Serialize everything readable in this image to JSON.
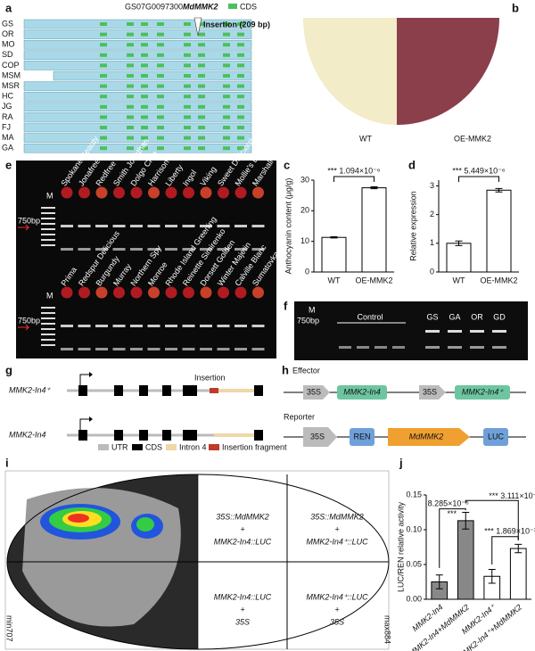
{
  "panel_a": {
    "label": "a",
    "gene_id": "GS07G0097300",
    "gene": "MdMMK2",
    "legend": "CDS",
    "insertion": "Insertion (209 bp)",
    "rows": [
      "GS",
      "OR",
      "MO",
      "SD",
      "COP",
      "MSM",
      "MSR",
      "HC",
      "JG",
      "RA",
      "FJ",
      "MA",
      "GA"
    ]
  },
  "panel_b": {
    "label": "b",
    "left": "WT",
    "right": "OE-MMK2"
  },
  "panel_e": {
    "label": "e",
    "marker": "M",
    "size": "750bp",
    "top_lanes": [
      "Spokane Beauty",
      "Jonafree",
      "Redfree",
      "Smith Jonathan",
      "Dolgo Crab",
      "Harrison",
      "Liberty",
      "Ingol",
      "Viking",
      "Sweet Delicious",
      "Mollie's Delicious",
      "Marshall McIntosh"
    ],
    "bottom_lanes": [
      "Prima",
      "Redspur Delicious",
      "Burgundy",
      "Murray",
      "Northern Spy",
      "Monroe",
      "Rhode Island Greening",
      "Reinette Simirenko",
      "Dorsett Golden",
      "Winter Majetin",
      "Calville Blanc",
      "Sumatovka"
    ]
  },
  "panel_f": {
    "label": "f",
    "marker": "M",
    "size": "750bp",
    "control": "Control",
    "lanes": [
      "GS",
      "GA",
      "OR",
      "GD"
    ]
  },
  "panel_g": {
    "label": "g",
    "construct_1": "MMK2-In4⁺",
    "insertion": "Insertion",
    "construct_2": "MMK2-In4",
    "legend": [
      "UTR",
      "CDS",
      "Intron 4",
      "Insertion fragment"
    ]
  },
  "panel_h": {
    "label": "h",
    "effector": "Effector",
    "promoter": "35S",
    "effector_1": "MMK2-In4",
    "effector_2": "MMK2-In4⁺",
    "reporter": "Reporter",
    "ren": "REN",
    "gene": "MdMMK2",
    "luc": "LUC"
  },
  "panel_i": {
    "label": "i",
    "quadrants": [
      [
        "35S::MdMMK2",
        "+",
        "MMK2-In4::LUC"
      ],
      [
        "35S::MdMMK2",
        "+",
        "MMK2-In4⁺::LUC"
      ],
      [
        "MMK2-In4::LUC",
        "+",
        "35S"
      ],
      [
        "MMK2-In4⁺::LUC",
        "+",
        "35S"
      ]
    ],
    "min": "min707",
    "max": "max884"
  },
  "chart_data": [
    {
      "type": "bar",
      "label": "c",
      "ylabel": "Anthocyanin content (μg/g)",
      "categories": [
        "WT",
        "OE-MMK2"
      ],
      "values": [
        11.3,
        27.5
      ],
      "errors": [
        0.2,
        0.3
      ],
      "ylim": [
        0,
        30
      ],
      "yticks": [
        0,
        10,
        20,
        30
      ],
      "color": "#ffffff",
      "annotations": [
        "*** 1.094×10⁻⁶"
      ]
    },
    {
      "type": "bar",
      "label": "d",
      "ylabel": "Relative expression",
      "categories": [
        "WT",
        "OE-MMK2"
      ],
      "values": [
        1.0,
        2.85
      ],
      "errors": [
        0.08,
        0.06
      ],
      "ylim": [
        0,
        3.2
      ],
      "yticks": [
        0,
        1,
        2,
        3
      ],
      "color": "#ffffff",
      "annotations": [
        "*** 5.449×10⁻⁶"
      ]
    },
    {
      "type": "bar",
      "label": "j",
      "ylabel": "LUC/REN relative activity",
      "categories": [
        "MMK2-In4",
        "MMK2-In4+MdMMK2",
        "MMK2-In4⁺",
        "MMK2-In4⁺+MdMMK2"
      ],
      "values": [
        0.025,
        0.113,
        0.033,
        0.073
      ],
      "errors": [
        0.01,
        0.012,
        0.01,
        0.006
      ],
      "ylim": [
        0,
        0.15
      ],
      "yticks": [
        {
          "value": 0,
          "label": "0.00"
        },
        0.05,
        {
          "value": 0.1,
          "label": "0.10"
        },
        0.15
      ],
      "color": "#888888",
      "colors": [
        "#888888",
        "#888888",
        "#ffffff",
        "#ffffff"
      ],
      "annotations": [
        "8.285×10⁻⁵",
        "***",
        "*** 3.111×10⁻⁴",
        "*** 1.869×10⁻³"
      ]
    }
  ]
}
